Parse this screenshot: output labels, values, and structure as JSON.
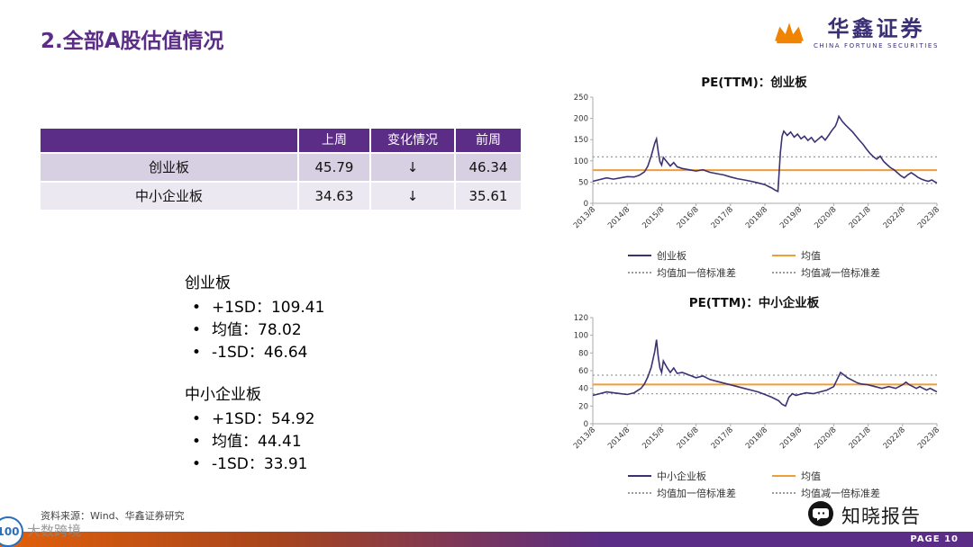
{
  "theme": {
    "purple": "#5b2d86",
    "orange": "#e8720c",
    "series_color": "#3b3274",
    "mean_color": "#ef9d38",
    "sd_color": "#9b9b9b",
    "row1_bg": "#d7cfe2",
    "row2_bg": "#ebe8f1"
  },
  "header": {
    "title": "2.全部A股估值情况",
    "logo_name": "华鑫证券",
    "logo_sub": "CHINA FORTUNE SECURITIES"
  },
  "table": {
    "headers": [
      "",
      "上周",
      "变化情况",
      "前周"
    ],
    "rows": [
      [
        "创业板",
        "45.79",
        "↓",
        "46.34"
      ],
      [
        "中小企业板",
        "34.63",
        "↓",
        "35.61"
      ]
    ]
  },
  "stats": {
    "block1": {
      "title": "创业板",
      "items": [
        "+1SD：109.41",
        "均值：78.02",
        "-1SD：46.64"
      ]
    },
    "block2": {
      "title": "中小企业板",
      "items": [
        "+1SD：54.92",
        "均值：44.41",
        "-1SD：33.91"
      ]
    }
  },
  "footer": {
    "source": "资料来源：Wind、华鑫证券研究",
    "page": "PAGE 10",
    "watermark_right": "知晓报告",
    "watermark_left": "大数跨境",
    "badge": "100"
  },
  "chart_data": [
    {
      "type": "line",
      "title": "PE(TTM)：创业板",
      "x_ticks": [
        "2013/8",
        "2014/8",
        "2015/8",
        "2016/8",
        "2017/8",
        "2018/8",
        "2019/8",
        "2020/8",
        "2021/8",
        "2022/8",
        "2023/8"
      ],
      "ylim": [
        0,
        250
      ],
      "yticks": [
        0,
        50,
        100,
        150,
        200,
        250
      ],
      "mean": 78.02,
      "plus_sd": 109.41,
      "minus_sd": 46.64,
      "legend": [
        "创业板",
        "均值",
        "均值加一倍标准差",
        "均值减一倍标准差"
      ],
      "points": [
        [
          0,
          52
        ],
        [
          0.2,
          56
        ],
        [
          0.4,
          60
        ],
        [
          0.6,
          57
        ],
        [
          0.8,
          60
        ],
        [
          1,
          63
        ],
        [
          1.2,
          62
        ],
        [
          1.35,
          66
        ],
        [
          1.5,
          74
        ],
        [
          1.6,
          88
        ],
        [
          1.7,
          112
        ],
        [
          1.8,
          142
        ],
        [
          1.85,
          152
        ],
        [
          1.9,
          122
        ],
        [
          1.95,
          98
        ],
        [
          2,
          90
        ],
        [
          2.05,
          108
        ],
        [
          2.15,
          98
        ],
        [
          2.25,
          88
        ],
        [
          2.35,
          96
        ],
        [
          2.45,
          86
        ],
        [
          2.6,
          82
        ],
        [
          2.8,
          79
        ],
        [
          3,
          76
        ],
        [
          3.2,
          79
        ],
        [
          3.4,
          73
        ],
        [
          3.6,
          70
        ],
        [
          3.8,
          67
        ],
        [
          4,
          62
        ],
        [
          4.2,
          58
        ],
        [
          4.4,
          55
        ],
        [
          4.6,
          52
        ],
        [
          4.8,
          48
        ],
        [
          5,
          44
        ],
        [
          5.1,
          40
        ],
        [
          5.2,
          36
        ],
        [
          5.3,
          31
        ],
        [
          5.38,
          28
        ],
        [
          5.45,
          120
        ],
        [
          5.5,
          158
        ],
        [
          5.55,
          170
        ],
        [
          5.65,
          160
        ],
        [
          5.75,
          168
        ],
        [
          5.85,
          156
        ],
        [
          5.95,
          163
        ],
        [
          6.05,
          152
        ],
        [
          6.15,
          158
        ],
        [
          6.25,
          148
        ],
        [
          6.35,
          155
        ],
        [
          6.45,
          144
        ],
        [
          6.55,
          151
        ],
        [
          6.65,
          158
        ],
        [
          6.75,
          149
        ],
        [
          6.85,
          160
        ],
        [
          6.95,
          172
        ],
        [
          7.05,
          182
        ],
        [
          7.1,
          192
        ],
        [
          7.15,
          205
        ],
        [
          7.25,
          193
        ],
        [
          7.35,
          184
        ],
        [
          7.45,
          176
        ],
        [
          7.55,
          168
        ],
        [
          7.65,
          158
        ],
        [
          7.75,
          148
        ],
        [
          7.85,
          139
        ],
        [
          7.95,
          128
        ],
        [
          8.05,
          118
        ],
        [
          8.15,
          110
        ],
        [
          8.25,
          104
        ],
        [
          8.35,
          111
        ],
        [
          8.45,
          99
        ],
        [
          8.55,
          91
        ],
        [
          8.65,
          84
        ],
        [
          8.75,
          79
        ],
        [
          8.85,
          72
        ],
        [
          8.95,
          65
        ],
        [
          9.05,
          60
        ],
        [
          9.15,
          67
        ],
        [
          9.25,
          72
        ],
        [
          9.35,
          67
        ],
        [
          9.45,
          61
        ],
        [
          9.55,
          57
        ],
        [
          9.65,
          54
        ],
        [
          9.75,
          52
        ],
        [
          9.85,
          55
        ],
        [
          9.95,
          50
        ],
        [
          10,
          48
        ]
      ]
    },
    {
      "type": "line",
      "title": "PE(TTM)：中小企业板",
      "x_ticks": [
        "2013/8",
        "2014/8",
        "2015/8",
        "2016/8",
        "2017/8",
        "2018/8",
        "2019/8",
        "2020/8",
        "2021/8",
        "2022/8",
        "2023/8"
      ],
      "ylim": [
        0,
        120
      ],
      "yticks": [
        0,
        20,
        40,
        60,
        80,
        100,
        120
      ],
      "mean": 44.41,
      "plus_sd": 54.92,
      "minus_sd": 33.91,
      "legend": [
        "中小企业板",
        "均值",
        "均值加一倍标准差",
        "均值减一倍标准差"
      ],
      "points": [
        [
          0,
          32
        ],
        [
          0.2,
          34
        ],
        [
          0.4,
          36
        ],
        [
          0.6,
          35
        ],
        [
          0.8,
          34
        ],
        [
          1,
          33
        ],
        [
          1.2,
          35
        ],
        [
          1.4,
          40
        ],
        [
          1.5,
          45
        ],
        [
          1.6,
          53
        ],
        [
          1.7,
          64
        ],
        [
          1.8,
          82
        ],
        [
          1.85,
          95
        ],
        [
          1.9,
          76
        ],
        [
          1.95,
          63
        ],
        [
          2,
          58
        ],
        [
          2.05,
          71
        ],
        [
          2.15,
          64
        ],
        [
          2.25,
          58
        ],
        [
          2.35,
          63
        ],
        [
          2.45,
          57
        ],
        [
          2.6,
          58
        ],
        [
          2.8,
          55
        ],
        [
          3,
          52
        ],
        [
          3.2,
          54
        ],
        [
          3.4,
          50
        ],
        [
          3.6,
          48
        ],
        [
          3.8,
          46
        ],
        [
          4,
          44
        ],
        [
          4.2,
          42
        ],
        [
          4.4,
          40
        ],
        [
          4.6,
          38
        ],
        [
          4.8,
          36
        ],
        [
          5,
          33
        ],
        [
          5.2,
          30
        ],
        [
          5.4,
          26
        ],
        [
          5.5,
          22
        ],
        [
          5.6,
          20
        ],
        [
          5.7,
          30
        ],
        [
          5.8,
          34
        ],
        [
          5.9,
          32
        ],
        [
          6,
          33
        ],
        [
          6.2,
          35
        ],
        [
          6.4,
          34
        ],
        [
          6.6,
          36
        ],
        [
          6.8,
          38
        ],
        [
          7,
          42
        ],
        [
          7.1,
          50
        ],
        [
          7.2,
          58
        ],
        [
          7.3,
          55
        ],
        [
          7.4,
          52
        ],
        [
          7.5,
          50
        ],
        [
          7.6,
          48
        ],
        [
          7.7,
          46
        ],
        [
          7.8,
          45
        ],
        [
          8,
          44
        ],
        [
          8.2,
          42
        ],
        [
          8.4,
          40
        ],
        [
          8.6,
          42
        ],
        [
          8.8,
          40
        ],
        [
          9,
          44
        ],
        [
          9.1,
          47
        ],
        [
          9.2,
          44
        ],
        [
          9.3,
          42
        ],
        [
          9.4,
          40
        ],
        [
          9.5,
          42
        ],
        [
          9.6,
          40
        ],
        [
          9.7,
          38
        ],
        [
          9.8,
          40
        ],
        [
          9.9,
          38
        ],
        [
          10,
          36
        ]
      ]
    }
  ]
}
